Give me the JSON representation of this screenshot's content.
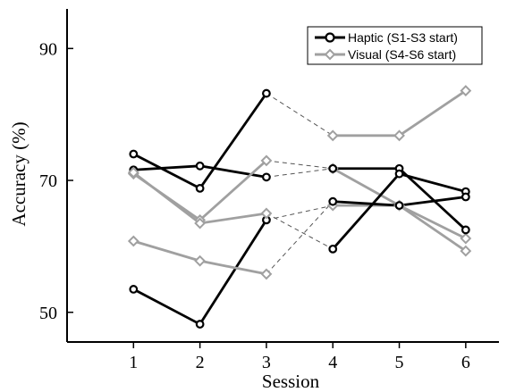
{
  "chart_data": {
    "type": "line",
    "xlabel": "Session",
    "ylabel": "Accuracy (%)",
    "x_ticks": [
      "1",
      "2",
      "3",
      "4",
      "5",
      "6"
    ],
    "y_ticks": [
      "50",
      "70",
      "90"
    ],
    "xlim": [
      0,
      6.5
    ],
    "ylim": [
      45.5,
      96
    ],
    "grid": false,
    "legend_position": "top-right",
    "colors": {
      "haptic": "#000000",
      "visual": "#a0a0a0",
      "transition": "#555555"
    },
    "legend": [
      {
        "label": "Haptic (S1-S3 start)",
        "color": "#000000",
        "marker": "circle"
      },
      {
        "label": "Visual (S4-S6 start)",
        "color": "#a0a0a0",
        "marker": "diamond"
      }
    ],
    "participants": [
      {
        "first": {
          "group": "haptic",
          "points": [
            [
              1,
              53.5
            ],
            [
              2,
              48.2
            ],
            [
              3,
              64.0
            ]
          ]
        },
        "second": {
          "group": "visual",
          "points": [
            [
              4,
              66.2
            ],
            [
              5,
              66.2
            ],
            [
              6,
              61.2
            ]
          ]
        }
      },
      {
        "first": {
          "group": "haptic",
          "points": [
            [
              1,
              74.0
            ],
            [
              2,
              68.8
            ],
            [
              3,
              83.2
            ]
          ]
        },
        "second": {
          "group": "visual",
          "points": [
            [
              4,
              76.8
            ],
            [
              5,
              76.8
            ],
            [
              6,
              83.6
            ]
          ]
        }
      },
      {
        "first": {
          "group": "haptic",
          "points": [
            [
              1,
              71.6
            ],
            [
              2,
              72.2
            ],
            [
              3,
              70.5
            ]
          ]
        },
        "second": {
          "group": "visual",
          "points": [
            [
              4,
              71.8
            ],
            [
              5,
              66.2
            ],
            [
              6,
              59.3
            ]
          ]
        }
      },
      {
        "first": {
          "group": "visual",
          "points": [
            [
              1,
              71.0
            ],
            [
              2,
              64.0
            ],
            [
              3,
              73.0
            ]
          ]
        },
        "second": {
          "group": "haptic",
          "points": [
            [
              4,
              71.8
            ],
            [
              5,
              71.8
            ],
            [
              6,
              62.5
            ]
          ]
        }
      },
      {
        "first": {
          "group": "visual",
          "points": [
            [
              1,
              71.2
            ],
            [
              2,
              63.5
            ],
            [
              3,
              65.0
            ]
          ]
        },
        "second": {
          "group": "haptic",
          "points": [
            [
              4,
              59.6
            ],
            [
              5,
              71.0
            ],
            [
              6,
              68.3
            ]
          ]
        }
      },
      {
        "first": {
          "group": "visual",
          "points": [
            [
              1,
              60.8
            ],
            [
              2,
              57.8
            ],
            [
              3,
              55.8
            ]
          ]
        },
        "second": {
          "group": "haptic",
          "points": [
            [
              4,
              66.8
            ],
            [
              5,
              66.2
            ],
            [
              6,
              67.5
            ]
          ]
        }
      }
    ]
  }
}
